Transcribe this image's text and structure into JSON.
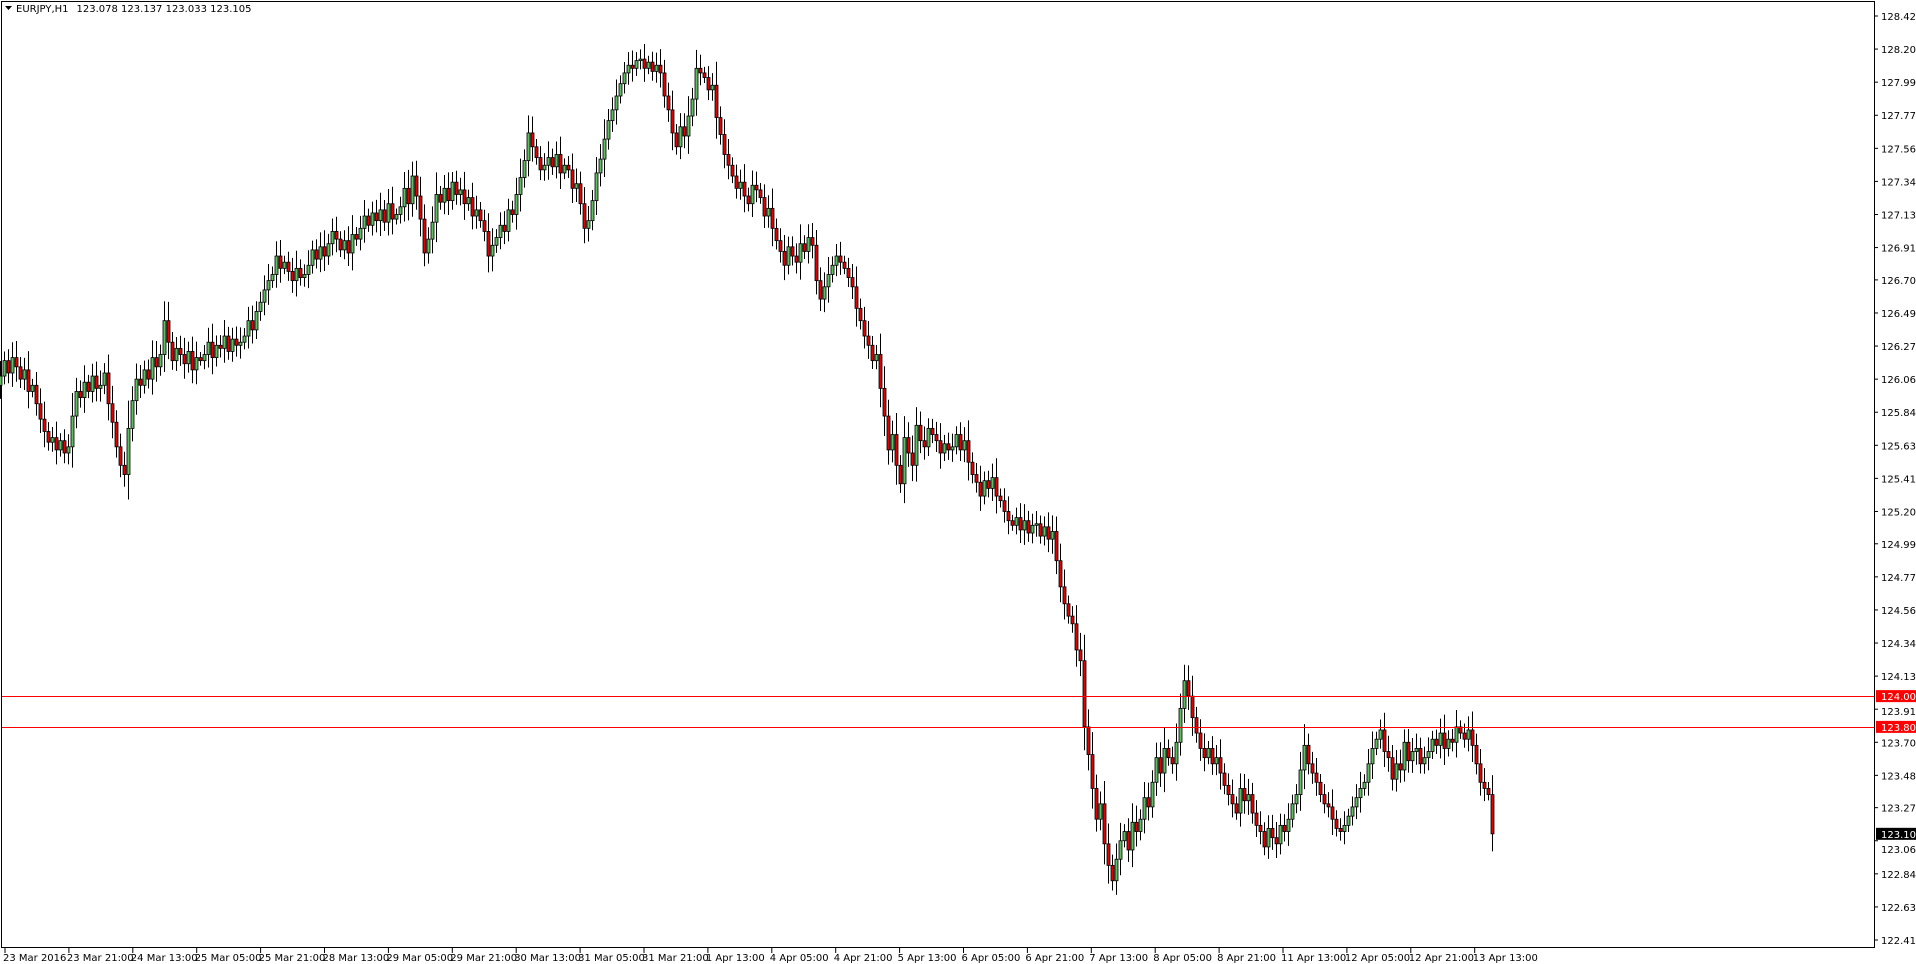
{
  "header": {
    "symbol": "EURJPY,H1",
    "ohlc": "123.078 123.137 123.033 123.105",
    "menu_icon": "triangle-down-icon"
  },
  "colors": {
    "bull": "#5fbf5f",
    "bear": "#e00000",
    "outline": "#000000",
    "level_line": "#ff0000",
    "bid_label_bg": "#000000"
  },
  "chart_data": {
    "type": "candlestick",
    "symbol": "EURJPY",
    "timeframe": "H1",
    "ylim": [
      122.415,
      128.42
    ],
    "grid": false,
    "y_ticks": [
      "128.420",
      "128.205",
      "127.990",
      "127.775",
      "127.560",
      "127.345",
      "127.130",
      "126.915",
      "126.705",
      "126.490",
      "126.275",
      "126.060",
      "125.845",
      "125.630",
      "125.415",
      "125.200",
      "124.990",
      "124.775",
      "124.560",
      "124.345",
      "124.130",
      "123.915",
      "123.700",
      "123.485",
      "123.275",
      "123.060",
      "122.845",
      "122.630",
      "122.415"
    ],
    "x_ticks": [
      "23 Mar 2016",
      "23 Mar 21:00",
      "24 Mar 13:00",
      "25 Mar 05:00",
      "25 Mar 21:00",
      "28 Mar 13:00",
      "29 Mar 05:00",
      "29 Mar 21:00",
      "30 Mar 13:00",
      "31 Mar 05:00",
      "31 Mar 21:00",
      "1 Apr 13:00",
      "4 Apr 05:00",
      "4 Apr 21:00",
      "5 Apr 13:00",
      "6 Apr 05:00",
      "6 Apr 21:00",
      "7 Apr 13:00",
      "8 Apr 05:00",
      "8 Apr 21:00",
      "11 Apr 13:00",
      "12 Apr 05:00",
      "12 Apr 21:00",
      "13 Apr 13:00"
    ],
    "horizontal_lines": [
      {
        "price": 124.0,
        "label": "124.000"
      },
      {
        "price": 123.8,
        "label": "123.800"
      }
    ],
    "bid": {
      "price": 123.105,
      "label": "123.105"
    },
    "first_open": 125.9,
    "closes": [
      125.98,
      125.92,
      126.04,
      126.0,
      126.1,
      126.02,
      126.08,
      126.18,
      126.1,
      126.2,
      126.14,
      126.06,
      126.12,
      125.98,
      126.02,
      125.9,
      125.8,
      125.72,
      125.65,
      125.68,
      125.6,
      125.66,
      125.58,
      125.62,
      125.82,
      125.98,
      125.94,
      126.04,
      125.98,
      126.08,
      126.0,
      126.02,
      126.1,
      125.9,
      125.78,
      125.62,
      125.5,
      125.44,
      125.74,
      125.92,
      126.06,
      126.02,
      126.12,
      126.06,
      126.2,
      126.14,
      126.22,
      126.44,
      126.3,
      126.18,
      126.26,
      126.22,
      126.16,
      126.24,
      126.12,
      126.2,
      126.18,
      126.22,
      126.3,
      126.2,
      126.28,
      126.26,
      126.34,
      126.24,
      126.32,
      126.28,
      126.3,
      126.34,
      126.44,
      126.38,
      126.5,
      126.56,
      126.64,
      126.7,
      126.74,
      126.86,
      126.78,
      126.82,
      126.76,
      126.7,
      126.78,
      126.72,
      126.74,
      126.8,
      126.9,
      126.84,
      126.92,
      126.86,
      126.94,
      127.02,
      126.97,
      126.9,
      126.96,
      126.88,
      127.0,
      126.97,
      127.04,
      127.12,
      127.06,
      127.14,
      127.09,
      127.16,
      127.08,
      127.2,
      127.1,
      127.13,
      127.18,
      127.3,
      127.2,
      127.38,
      127.25,
      127.1,
      126.88,
      126.97,
      127.08,
      127.26,
      127.21,
      127.3,
      127.22,
      127.34,
      127.26,
      127.29,
      127.2,
      127.24,
      127.12,
      127.16,
      127.09,
      127.02,
      126.86,
      126.93,
      126.98,
      127.06,
      127.02,
      127.16,
      127.13,
      127.26,
      127.37,
      127.48,
      127.66,
      127.57,
      127.5,
      127.42,
      127.45,
      127.5,
      127.44,
      127.52,
      127.4,
      127.45,
      127.42,
      127.3,
      127.33,
      127.2,
      127.04,
      127.09,
      127.22,
      127.4,
      127.49,
      127.62,
      127.74,
      127.81,
      127.9,
      127.98,
      128.05,
      128.1,
      128.08,
      128.13,
      128.14,
      128.08,
      128.12,
      128.06,
      128.1,
      128.05,
      127.9,
      127.81,
      127.66,
      127.57,
      127.7,
      127.64,
      127.77,
      127.88,
      128.08,
      128.05,
      128.02,
      127.94,
      127.97,
      127.76,
      127.65,
      127.52,
      127.45,
      127.38,
      127.3,
      127.34,
      127.25,
      127.2,
      127.32,
      127.29,
      127.24,
      127.12,
      127.17,
      127.04,
      126.96,
      126.89,
      126.8,
      126.92,
      126.86,
      126.82,
      126.94,
      126.89,
      126.98,
      126.93,
      126.7,
      126.58,
      126.66,
      126.74,
      126.8,
      126.86,
      126.82,
      126.78,
      126.72,
      126.66,
      126.52,
      126.44,
      126.34,
      126.28,
      126.18,
      126.22,
      126.0,
      125.82,
      125.6,
      125.7,
      125.5,
      125.38,
      125.68,
      125.58,
      125.5,
      125.76,
      125.66,
      125.62,
      125.74,
      125.7,
      125.66,
      125.58,
      125.64,
      125.6,
      125.62,
      125.7,
      125.6,
      125.66,
      125.52,
      125.44,
      125.39,
      125.3,
      125.4,
      125.35,
      125.42,
      125.3,
      125.27,
      125.2,
      125.14,
      125.11,
      125.16,
      125.08,
      125.14,
      125.06,
      125.11,
      125.12,
      125.04,
      125.1,
      125.02,
      125.07,
      124.88,
      124.71,
      124.6,
      124.52,
      124.47,
      124.3,
      124.23,
      123.8,
      123.62,
      123.4,
      123.2,
      123.3,
      123.04,
      122.9,
      122.8,
      122.94,
      123.06,
      123.12,
      123.0,
      123.18,
      123.12,
      123.2,
      123.34,
      123.28,
      123.44,
      123.6,
      123.5,
      123.66,
      123.6,
      123.56,
      123.7,
      123.92,
      124.1,
      124.0,
      123.86,
      123.76,
      123.66,
      123.6,
      123.66,
      123.56,
      123.6,
      123.5,
      123.42,
      123.36,
      123.3,
      123.24,
      123.4,
      123.32,
      123.36,
      123.24,
      123.16,
      123.12,
      123.02,
      123.14,
      123.08,
      123.04,
      123.16,
      123.12,
      123.2,
      123.3,
      123.36,
      123.52,
      123.68,
      123.56,
      123.5,
      123.44,
      123.36,
      123.3,
      123.28,
      123.2,
      123.14,
      123.12,
      123.16,
      123.22,
      123.28,
      123.34,
      123.4,
      123.44,
      123.56,
      123.66,
      123.72,
      123.78,
      123.64,
      123.6,
      123.46,
      123.56,
      123.52,
      123.7,
      123.58,
      123.64,
      123.66,
      123.56,
      123.6,
      123.64,
      123.72,
      123.68,
      123.76,
      123.66,
      123.72,
      123.7,
      123.8,
      123.76,
      123.72,
      123.78,
      123.68,
      123.56,
      123.44,
      123.4,
      123.36,
      123.105
    ]
  }
}
